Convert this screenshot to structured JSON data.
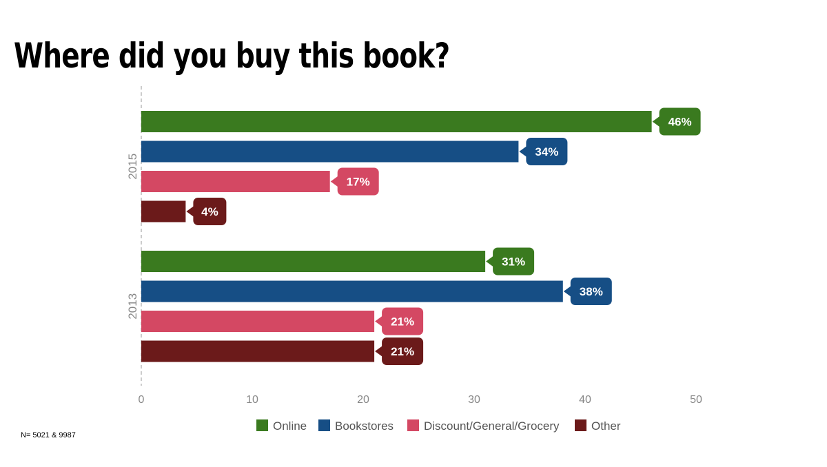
{
  "chart_data": {
    "type": "bar",
    "orientation": "horizontal",
    "title": "Where did you buy this book?",
    "categories": [
      "2015",
      "2013"
    ],
    "series": [
      {
        "name": "Online",
        "color": "#3a7a1f",
        "values": [
          46,
          31
        ],
        "labels": [
          "46%",
          "31%"
        ]
      },
      {
        "name": "Bookstores",
        "color": "#164e85",
        "values": [
          34,
          38
        ],
        "labels": [
          "34%",
          "38%"
        ]
      },
      {
        "name": "Discount/General/Grocery",
        "color": "#d44863",
        "values": [
          17,
          21
        ],
        "labels": [
          "17%",
          "21%"
        ]
      },
      {
        "name": "Other",
        "color": "#6b1a1a",
        "values": [
          4,
          21
        ],
        "labels": [
          "4%",
          "21%"
        ]
      }
    ],
    "xlim": [
      0,
      50
    ],
    "xticks": [
      "0",
      "10",
      "20",
      "30",
      "40",
      "50"
    ],
    "grid": false,
    "legend_position": "bottom",
    "footnote": "N= 5021 & 9987"
  }
}
